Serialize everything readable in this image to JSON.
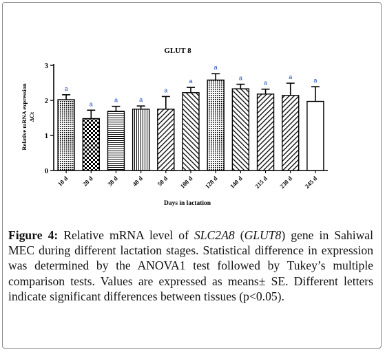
{
  "chart_data": {
    "type": "bar",
    "title": "GLUT 8",
    "xlabel": "Days in lactation",
    "ylabel_line1": "Relative mRNA expression",
    "ylabel_line2": "ΔCt",
    "ylim": [
      0,
      3
    ],
    "yticks": [
      "0",
      "1",
      "2",
      "3"
    ],
    "grid": false,
    "categories": [
      "10 d",
      "20 d",
      "30 d",
      "40 d",
      "50 d",
      "100 d",
      "120 d",
      "140 d",
      "215 d",
      "230 d",
      "245 d"
    ],
    "values": [
      2.02,
      1.48,
      1.69,
      1.75,
      1.75,
      2.22,
      2.58,
      2.33,
      2.18,
      2.14,
      1.97
    ],
    "errors": [
      0.14,
      0.24,
      0.14,
      0.09,
      0.36,
      0.15,
      0.18,
      0.13,
      0.14,
      0.35,
      0.42
    ],
    "letters": [
      "a",
      "a",
      "a",
      "a",
      "a",
      "a",
      "a",
      "a",
      "a",
      "a",
      "a"
    ],
    "patterns": [
      "dots",
      "checker",
      "hlines",
      "vlines",
      "diag-down",
      "diag-up",
      "dots",
      "diag-up",
      "diag-down",
      "diag-down",
      "solid-white"
    ],
    "colors": {
      "bar_stroke": "#000000",
      "letter": "#1f4fbf"
    }
  },
  "caption": {
    "label": "Figure 4:",
    "text_part1": " Relative mRNA level of ",
    "gene1": "SLC2A8",
    "text_part2": " (",
    "gene2": "GLUT8",
    "text_part3": ") gene in Sahiwal MEC during different lactation stages. Statistical difference in expression was determined by the ANOVA1 test followed by Tukey’s multiple comparison tests. Values are expressed as means± SE. Different letters indicate significant differences between tissues (p<0.05)."
  }
}
